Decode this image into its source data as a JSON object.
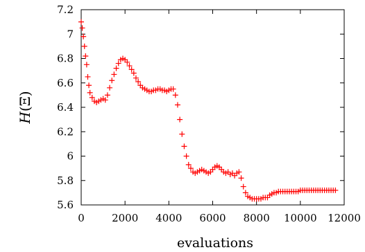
{
  "chart_data": {
    "type": "scatter",
    "xlabel": "evaluations",
    "ylabel": "H(Ξ)",
    "ylabel_parts": {
      "func": "H",
      "open": "(",
      "sym": "Ξ",
      "close": ")"
    },
    "xlim": [
      0,
      12000
    ],
    "ylim": [
      5.6,
      7.2
    ],
    "xticks": [
      0,
      2000,
      4000,
      6000,
      8000,
      10000,
      12000
    ],
    "yticks": [
      5.6,
      5.8,
      6.0,
      6.2,
      6.4,
      6.6,
      6.8,
      7.0,
      7.2
    ],
    "xtick_labels": [
      "0",
      "2000",
      "4000",
      "6000",
      "8000",
      "10000",
      "12000"
    ],
    "ytick_labels": [
      "5.6",
      "5.8",
      "6",
      "6.2",
      "6.4",
      "6.6",
      "6.8",
      "7",
      "7.2"
    ],
    "grid": false,
    "marker": "plus",
    "color": "#ff0000",
    "series": [
      {
        "x": [
          0,
          50,
          100,
          150,
          200,
          250,
          300,
          350,
          400,
          500,
          600,
          700,
          800,
          900,
          1000,
          1100,
          1200,
          1300,
          1400,
          1500,
          1600,
          1700,
          1800,
          1900,
          2000,
          2100,
          2200,
          2300,
          2400,
          2500,
          2600,
          2700,
          2800,
          2900,
          3000,
          3100,
          3200,
          3300,
          3400,
          3500,
          3600,
          3700,
          3800,
          3900,
          4000,
          4100,
          4200,
          4300,
          4400,
          4500,
          4600,
          4700,
          4800,
          4900,
          5000,
          5100,
          5200,
          5300,
          5400,
          5500,
          5600,
          5700,
          5800,
          5900,
          6000,
          6100,
          6200,
          6300,
          6400,
          6500,
          6600,
          6700,
          6800,
          6900,
          7000,
          7100,
          7200,
          7300,
          7400,
          7500,
          7600,
          7700,
          7800,
          7900,
          8000,
          8100,
          8200,
          8300,
          8400,
          8500,
          8600,
          8700,
          8800,
          8900,
          9000,
          9100,
          9200,
          9300,
          9400,
          9500,
          9600,
          9700,
          9800,
          9900,
          10000,
          10100,
          10200,
          10300,
          10400,
          10500,
          10600,
          10700,
          10800,
          10900,
          11000,
          11100,
          11200,
          11300,
          11400,
          11500,
          11600
        ],
        "y": [
          7.1,
          7.05,
          6.98,
          6.9,
          6.82,
          6.75,
          6.65,
          6.58,
          6.52,
          6.48,
          6.45,
          6.44,
          6.45,
          6.46,
          6.47,
          6.46,
          6.5,
          6.56,
          6.62,
          6.67,
          6.72,
          6.76,
          6.79,
          6.8,
          6.79,
          6.77,
          6.74,
          6.71,
          6.68,
          6.64,
          6.61,
          6.58,
          6.56,
          6.55,
          6.54,
          6.53,
          6.53,
          6.54,
          6.54,
          6.55,
          6.55,
          6.54,
          6.54,
          6.53,
          6.54,
          6.55,
          6.55,
          6.5,
          6.42,
          6.3,
          6.18,
          6.08,
          6.0,
          5.93,
          5.9,
          5.87,
          5.86,
          5.87,
          5.88,
          5.89,
          5.88,
          5.87,
          5.86,
          5.87,
          5.89,
          5.91,
          5.92,
          5.91,
          5.89,
          5.87,
          5.86,
          5.87,
          5.85,
          5.86,
          5.84,
          5.86,
          5.87,
          5.82,
          5.75,
          5.7,
          5.67,
          5.66,
          5.65,
          5.65,
          5.65,
          5.65,
          5.65,
          5.66,
          5.66,
          5.66,
          5.68,
          5.69,
          5.7,
          5.7,
          5.71,
          5.71,
          5.71,
          5.71,
          5.71,
          5.71,
          5.71,
          5.71,
          5.71,
          5.71,
          5.72,
          5.72,
          5.72,
          5.72,
          5.72,
          5.72,
          5.72,
          5.72,
          5.72,
          5.72,
          5.72,
          5.72,
          5.72,
          5.72,
          5.72,
          5.72,
          5.72
        ]
      }
    ]
  }
}
